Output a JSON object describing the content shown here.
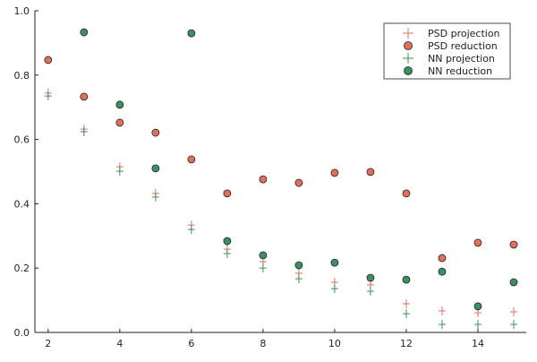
{
  "chart_data": {
    "type": "scatter",
    "title": "",
    "xlabel": "",
    "ylabel": "",
    "xlim": [
      1.63,
      15.35
    ],
    "ylim": [
      0,
      1.0
    ],
    "xticks": [
      2,
      4,
      6,
      8,
      10,
      12,
      14
    ],
    "yticks": [
      0.0,
      0.2,
      0.4,
      0.6,
      0.8,
      1.0
    ],
    "ytick_labels": [
      "0.0",
      "0.2",
      "0.4",
      "0.6",
      "0.8",
      "1.0"
    ],
    "grid": false,
    "legend_position": "top-right",
    "x": [
      2,
      3,
      4,
      5,
      6,
      7,
      8,
      9,
      10,
      11,
      12,
      13,
      14,
      15
    ],
    "series": [
      {
        "name": "PSD projection",
        "marker": "cross",
        "color": "#e26f5a",
        "values": [
          0.744,
          0.632,
          0.515,
          0.432,
          0.334,
          0.259,
          0.22,
          0.184,
          0.156,
          0.148,
          0.089,
          0.067,
          0.061,
          0.064
        ]
      },
      {
        "name": "PSD reduction",
        "marker": "circle",
        "color": "#e26f5a",
        "values": [
          0.847,
          0.733,
          0.652,
          0.621,
          0.538,
          0.432,
          0.476,
          0.465,
          0.496,
          0.499,
          0.432,
          0.231,
          0.279,
          0.273
        ]
      },
      {
        "name": "NN projection",
        "marker": "cross",
        "color": "#3a9060",
        "values": [
          0.735,
          0.624,
          0.501,
          0.421,
          0.32,
          0.245,
          0.2,
          0.167,
          0.136,
          0.128,
          0.058,
          0.025,
          0.025,
          0.025
        ]
      },
      {
        "name": "NN reduction",
        "marker": "circle",
        "color": "#3a9060",
        "values": [
          null,
          0.933,
          0.708,
          0.51,
          0.93,
          0.284,
          0.24,
          0.209,
          0.217,
          0.17,
          0.164,
          0.189,
          0.081,
          0.156
        ]
      }
    ]
  }
}
